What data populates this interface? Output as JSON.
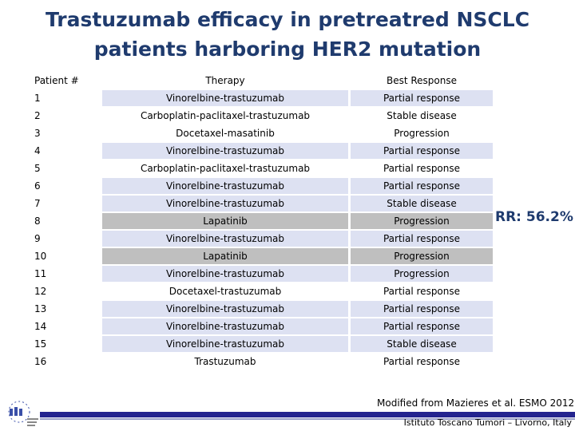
{
  "title_line1": "Trastuzumab efficacy in pretreatred NSCLC",
  "title_line2": "patients harboring HER2 mutation",
  "table": {
    "headers": {
      "patient": "Patient #",
      "therapy": "Therapy",
      "response": "Best Response"
    },
    "rows": [
      {
        "patient": "1",
        "therapy": "Vinorelbine-trastuzumab",
        "response": "Partial response",
        "shade": "blue"
      },
      {
        "patient": "2",
        "therapy": "Carboplatin-paclitaxel-trastuzumab",
        "response": "Stable disease",
        "shade": "none"
      },
      {
        "patient": "3",
        "therapy": "Docetaxel-masatinib",
        "response": "Progression",
        "shade": "none"
      },
      {
        "patient": "4",
        "therapy": "Vinorelbine-trastuzumab",
        "response": "Partial response",
        "shade": "blue"
      },
      {
        "patient": "5",
        "therapy": "Carboplatin-paclitaxel-trastuzumab",
        "response": "Partial response",
        "shade": "none"
      },
      {
        "patient": "6",
        "therapy": "Vinorelbine-trastuzumab",
        "response": "Partial response",
        "shade": "blue"
      },
      {
        "patient": "7",
        "therapy": "Vinorelbine-trastuzumab",
        "response": "Stable disease",
        "shade": "blue"
      },
      {
        "patient": "8",
        "therapy": "Lapatinib",
        "response": "Progression",
        "shade": "gray"
      },
      {
        "patient": "9",
        "therapy": "Vinorelbine-trastuzumab",
        "response": "Partial response",
        "shade": "blue"
      },
      {
        "patient": "10",
        "therapy": "Lapatinib",
        "response": "Progression",
        "shade": "gray"
      },
      {
        "patient": "11",
        "therapy": "Vinorelbine-trastuzumab",
        "response": "Progression",
        "shade": "blue"
      },
      {
        "patient": "12",
        "therapy": "Docetaxel-trastuzumab",
        "response": "Partial response",
        "shade": "none"
      },
      {
        "patient": "13",
        "therapy": "Vinorelbine-trastuzumab",
        "response": "Partial response",
        "shade": "blue"
      },
      {
        "patient": "14",
        "therapy": "Vinorelbine-trastuzumab",
        "response": "Partial response",
        "shade": "blue"
      },
      {
        "patient": "15",
        "therapy": "Vinorelbine-trastuzumab",
        "response": "Stable disease",
        "shade": "blue"
      },
      {
        "patient": "16",
        "therapy": "Trastuzumab",
        "response": "Partial response",
        "shade": "none"
      }
    ]
  },
  "response_rate": "RR: 56.2%",
  "source_note": "Modified from Mazieres et al. ESMO 2012",
  "institute": "Istituto Toscano Tumori – Livorno, Italy",
  "colors": {
    "title": "#1f3b6e",
    "blue_shade": "#dde1f2",
    "gray_shade": "#bfbfbf",
    "footer_bar": "#24248f"
  }
}
